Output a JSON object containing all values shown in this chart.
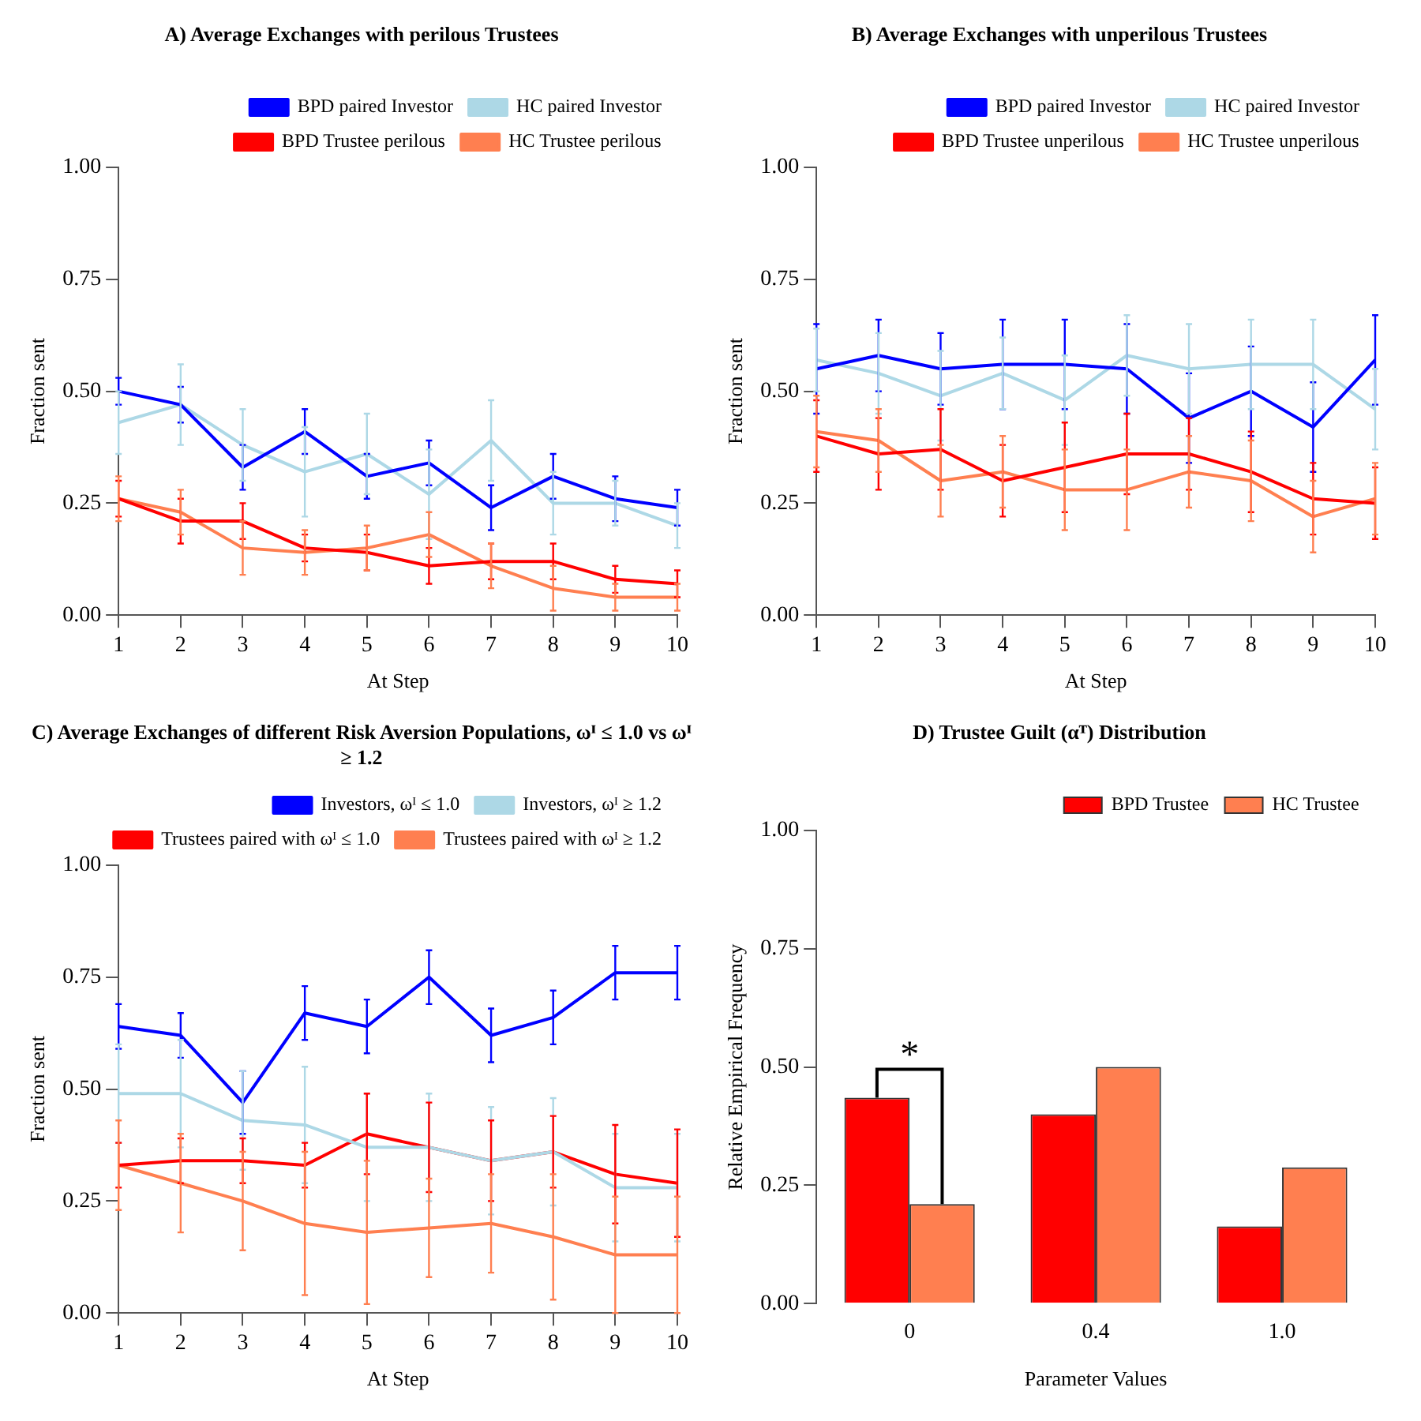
{
  "chart_data": [
    {
      "type": "line",
      "title": "A) Average Exchanges with perilous Trustees",
      "xlabel": "At Step",
      "ylabel": "Fraction sent",
      "x": [
        1,
        2,
        3,
        4,
        5,
        6,
        7,
        8,
        9,
        10
      ],
      "xlim": [
        1,
        10
      ],
      "xticks": [
        1,
        2,
        3,
        4,
        5,
        6,
        7,
        8,
        9,
        10
      ],
      "ylim": [
        0,
        1
      ],
      "yticks": [
        {
          "value": 0,
          "label": "0.00"
        },
        {
          "value": 0.25,
          "label": "0.25"
        },
        {
          "value": 0.5,
          "label": "0.50"
        },
        {
          "value": 0.75,
          "label": "0.75"
        },
        {
          "value": 1,
          "label": "1.00"
        }
      ],
      "grid": false,
      "legend": "top right",
      "marker": "none",
      "line_style": "solid",
      "series": [
        {
          "name": "BPD paired Investor",
          "color": "#0000ff",
          "values": [
            0.5,
            0.47,
            0.33,
            0.41,
            0.31,
            0.34,
            0.24,
            0.31,
            0.26,
            0.24
          ],
          "errors": [
            0.03,
            0.04,
            0.05,
            0.05,
            0.05,
            0.05,
            0.05,
            0.05,
            0.05,
            0.04
          ]
        },
        {
          "name": "HC paired Investor",
          "color": "#add8e6",
          "values": [
            0.43,
            0.47,
            0.38,
            0.32,
            0.36,
            0.27,
            0.39,
            0.25,
            0.25,
            0.2
          ],
          "errors": [
            0.07,
            0.09,
            0.08,
            0.1,
            0.09,
            0.1,
            0.09,
            0.07,
            0.05,
            0.05
          ]
        },
        {
          "name": "BPD Trustee perilous",
          "color": "#ff0000",
          "values": [
            0.26,
            0.21,
            0.21,
            0.15,
            0.14,
            0.11,
            0.12,
            0.12,
            0.08,
            0.07
          ],
          "errors": [
            0.04,
            0.05,
            0.04,
            0.03,
            0.04,
            0.04,
            0.04,
            0.04,
            0.03,
            0.03
          ]
        },
        {
          "name": "HC Trustee perilous",
          "color": "#ff7f50",
          "values": [
            0.26,
            0.23,
            0.15,
            0.14,
            0.15,
            0.18,
            0.11,
            0.06,
            0.04,
            0.04
          ],
          "errors": [
            0.05,
            0.05,
            0.06,
            0.05,
            0.05,
            0.05,
            0.05,
            0.05,
            0.03,
            0.03
          ]
        }
      ]
    },
    {
      "type": "line",
      "title": "B) Average Exchanges with unperilous Trustees",
      "xlabel": "At Step",
      "ylabel": "Fraction sent",
      "x": [
        1,
        2,
        3,
        4,
        5,
        6,
        7,
        8,
        9,
        10
      ],
      "xlim": [
        1,
        10
      ],
      "xticks": [
        1,
        2,
        3,
        4,
        5,
        6,
        7,
        8,
        9,
        10
      ],
      "ylim": [
        0,
        1
      ],
      "yticks": [
        {
          "value": 0,
          "label": "0.00"
        },
        {
          "value": 0.25,
          "label": "0.25"
        },
        {
          "value": 0.5,
          "label": "0.50"
        },
        {
          "value": 0.75,
          "label": "0.75"
        },
        {
          "value": 1,
          "label": "1.00"
        }
      ],
      "grid": false,
      "legend": "top right",
      "marker": "none",
      "line_style": "solid",
      "series": [
        {
          "name": "BPD paired Investor",
          "color": "#0000ff",
          "values": [
            0.55,
            0.58,
            0.55,
            0.56,
            0.56,
            0.55,
            0.44,
            0.5,
            0.42,
            0.57
          ],
          "errors": [
            0.1,
            0.08,
            0.08,
            0.1,
            0.1,
            0.1,
            0.1,
            0.1,
            0.1,
            0.1
          ]
        },
        {
          "name": "HC paired Investor",
          "color": "#add8e6",
          "values": [
            0.57,
            0.54,
            0.49,
            0.54,
            0.48,
            0.58,
            0.55,
            0.56,
            0.56,
            0.46
          ],
          "errors": [
            0.07,
            0.09,
            0.1,
            0.08,
            0.1,
            0.09,
            0.1,
            0.1,
            0.1,
            0.09
          ]
        },
        {
          "name": "BPD Trustee unperilous",
          "color": "#ff0000",
          "values": [
            0.4,
            0.36,
            0.37,
            0.3,
            0.33,
            0.36,
            0.36,
            0.32,
            0.26,
            0.25
          ],
          "errors": [
            0.08,
            0.08,
            0.09,
            0.08,
            0.1,
            0.09,
            0.08,
            0.09,
            0.08,
            0.08
          ]
        },
        {
          "name": "HC Trustee unperilous",
          "color": "#ff7f50",
          "values": [
            0.41,
            0.39,
            0.3,
            0.32,
            0.28,
            0.28,
            0.32,
            0.3,
            0.22,
            0.26
          ],
          "errors": [
            0.08,
            0.07,
            0.08,
            0.08,
            0.09,
            0.09,
            0.08,
            0.09,
            0.08,
            0.08
          ]
        }
      ]
    },
    {
      "type": "line",
      "title": "C) Average Exchanges of different Risk Aversion Populations, ωᴵ ≤ 1.0 vs ωᴵ ≥ 1.2",
      "xlabel": "At Step",
      "ylabel": "Fraction sent",
      "x": [
        1,
        2,
        3,
        4,
        5,
        6,
        7,
        8,
        9,
        10
      ],
      "xlim": [
        1,
        10
      ],
      "xticks": [
        1,
        2,
        3,
        4,
        5,
        6,
        7,
        8,
        9,
        10
      ],
      "ylim": [
        0,
        1
      ],
      "yticks": [
        {
          "value": 0,
          "label": "0.00"
        },
        {
          "value": 0.25,
          "label": "0.25"
        },
        {
          "value": 0.5,
          "label": "0.50"
        },
        {
          "value": 0.75,
          "label": "0.75"
        },
        {
          "value": 1,
          "label": "1.00"
        }
      ],
      "grid": false,
      "legend": "top right",
      "marker": "none",
      "line_style": "solid",
      "series": [
        {
          "name": "Investors, ωᴵ ≤ 1.0",
          "color": "#0000ff",
          "values": [
            0.64,
            0.62,
            0.47,
            0.67,
            0.64,
            0.75,
            0.62,
            0.66,
            0.76,
            0.76
          ],
          "errors": [
            0.05,
            0.05,
            0.07,
            0.06,
            0.06,
            0.06,
            0.06,
            0.06,
            0.06,
            0.06
          ]
        },
        {
          "name": "Investors, ωᴵ ≥ 1.2",
          "color": "#add8e6",
          "values": [
            0.49,
            0.49,
            0.43,
            0.42,
            0.37,
            0.37,
            0.34,
            0.36,
            0.28,
            0.28
          ],
          "errors": [
            0.11,
            0.12,
            0.11,
            0.13,
            0.12,
            0.12,
            0.12,
            0.12,
            0.12,
            0.12
          ]
        },
        {
          "name": "Trustees paired with ωᴵ ≤ 1.0",
          "color": "#ff0000",
          "values": [
            0.33,
            0.34,
            0.34,
            0.33,
            0.4,
            0.37,
            0.34,
            0.36,
            0.31,
            0.29
          ],
          "errors": [
            0.05,
            0.05,
            0.05,
            0.05,
            0.09,
            0.1,
            0.09,
            0.08,
            0.11,
            0.12
          ]
        },
        {
          "name": "Trustees paired with ωᴵ ≥ 1.2",
          "color": "#ff7f50",
          "values": [
            0.33,
            0.29,
            0.25,
            0.2,
            0.18,
            0.19,
            0.2,
            0.17,
            0.13,
            0.13
          ],
          "errors": [
            0.1,
            0.11,
            0.11,
            0.16,
            0.16,
            0.11,
            0.11,
            0.14,
            0.13,
            0.13
          ]
        }
      ]
    },
    {
      "type": "bar",
      "title": "D) Trustee Guilt (αᵀ) Distribution",
      "xlabel": "Parameter Values",
      "ylabel": "Relative Empirical Frequency",
      "categories": [
        "0",
        "0.4",
        "1.0"
      ],
      "ylim": [
        0,
        1
      ],
      "yticks": [
        {
          "value": 0,
          "label": "0.00"
        },
        {
          "value": 0.25,
          "label": "0.25"
        },
        {
          "value": 0.5,
          "label": "0.50"
        },
        {
          "value": 0.75,
          "label": "0.75"
        },
        {
          "value": 1,
          "label": "1.00"
        }
      ],
      "grid": false,
      "legend": "top right",
      "annotations": [
        {
          "text": "*",
          "x": "0",
          "y": 0.435
        }
      ],
      "series": [
        {
          "name": "BPD Trustee",
          "color": "#ff0000",
          "values": [
            0.435,
            0.4,
            0.163
          ]
        },
        {
          "name": "HC Trustee",
          "color": "#ff7f50",
          "values": [
            0.21,
            0.5,
            0.288
          ]
        }
      ]
    }
  ]
}
